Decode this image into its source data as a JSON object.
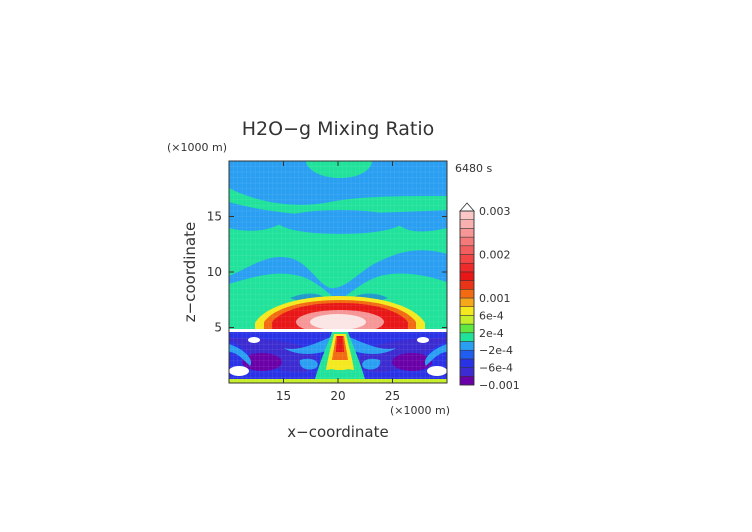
{
  "chart_data": {
    "type": "heatmap",
    "title": "H2O−g Mixing Ratio",
    "xlabel": "x−coordinate",
    "ylabel": "z−coordinate",
    "x_unit": "(×1000 m)",
    "y_unit": "(×1000 m)",
    "time_label": "6480 s",
    "xlim": [
      10,
      30
    ],
    "ylim": [
      0,
      20
    ],
    "xticks": [
      {
        "v": 15,
        "t": "15"
      },
      {
        "v": 20,
        "t": "20"
      },
      {
        "v": 25,
        "t": "25"
      }
    ],
    "yticks": [
      {
        "v": 5,
        "t": "5"
      },
      {
        "v": 10,
        "t": "10"
      },
      {
        "v": 15,
        "t": "15"
      }
    ],
    "colorbar": {
      "extend": "max",
      "levels": [
        {
          "value": -0.001,
          "color": "#6a00a8"
        },
        {
          "value": -0.0008,
          "color": "#3c2bd0"
        },
        {
          "value": -0.0006,
          "color": "#2a32e6"
        },
        {
          "value": -0.0004,
          "color": "#1f5ef0"
        },
        {
          "value": -0.0002,
          "color": "#2a9ff2"
        },
        {
          "value": 0.0,
          "color": "#20e29a"
        },
        {
          "value": 0.0002,
          "color": "#60e840"
        },
        {
          "value": 0.0004,
          "color": "#c6ee2a"
        },
        {
          "value": 0.0006,
          "color": "#f4e91e"
        },
        {
          "value": 0.0008,
          "color": "#f6a81a"
        },
        {
          "value": 0.001,
          "color": "#f26a12"
        },
        {
          "value": 0.0012,
          "color": "#ea3418"
        },
        {
          "value": 0.0014,
          "color": "#e81616"
        },
        {
          "value": 0.0016,
          "color": "#ee2a2a"
        },
        {
          "value": 0.0018,
          "color": "#f24646"
        },
        {
          "value": 0.002,
          "color": "#f25e5e"
        },
        {
          "value": 0.0022,
          "color": "#f47a7a"
        },
        {
          "value": 0.0024,
          "color": "#f69696"
        },
        {
          "value": 0.0026,
          "color": "#f8b0b0"
        },
        {
          "value": 0.0028,
          "color": "#fac6c6"
        },
        {
          "value": 0.003,
          "color": "#ffffff"
        }
      ],
      "tick_labels": [
        {
          "v": 0.003,
          "t": "0.003"
        },
        {
          "v": 0.002,
          "t": "0.002"
        },
        {
          "v": 0.001,
          "t": "0.001"
        },
        {
          "v": 0.0006,
          "t": "6e-4"
        },
        {
          "v": 0.0002,
          "t": "2e-4"
        },
        {
          "v": -0.0002,
          "t": "−2e-4"
        },
        {
          "v": -0.0006,
          "t": "−6e-4"
        },
        {
          "v": -0.001,
          "t": "−0.001"
        }
      ]
    },
    "grid": false
  }
}
